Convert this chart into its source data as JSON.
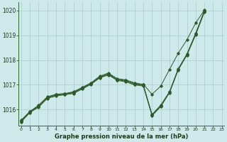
{
  "bg_color": "#cee9e9",
  "grid_color": "#a8cccc",
  "line_color": "#2d5a2d",
  "title": "Graphe pression niveau de la mer (hPa)",
  "ylabel_ticks": [
    1016,
    1017,
    1018,
    1019,
    1020
  ],
  "xlim": [
    -0.3,
    23.3
  ],
  "ylim": [
    1015.35,
    1020.35
  ],
  "series": [
    {
      "x": [
        0,
        1,
        2,
        3,
        4,
        5,
        6,
        7,
        8,
        9,
        10,
        11,
        12,
        13,
        14,
        15,
        16,
        17,
        18,
        19,
        20,
        21
      ],
      "y": [
        1015.55,
        1015.92,
        1016.15,
        1016.5,
        1016.6,
        1016.63,
        1016.7,
        1016.88,
        1017.05,
        1017.32,
        1017.45,
        1017.22,
        1017.18,
        1017.05,
        1017.0,
        1015.8,
        1016.18,
        1016.72,
        1017.65,
        1018.25,
        1019.08,
        1020.0
      ]
    },
    {
      "x": [
        0,
        1,
        2,
        3,
        4,
        5,
        6,
        7,
        8,
        9,
        10,
        11,
        12,
        13,
        14,
        15,
        16,
        17,
        18,
        19,
        20,
        21
      ],
      "y": [
        1015.52,
        1015.9,
        1016.12,
        1016.48,
        1016.58,
        1016.62,
        1016.68,
        1016.86,
        1017.04,
        1017.3,
        1017.42,
        1017.2,
        1017.15,
        1017.02,
        1016.98,
        1015.78,
        1016.15,
        1016.7,
        1017.62,
        1018.22,
        1019.05,
        1019.97
      ]
    },
    {
      "x": [
        0,
        1,
        2,
        3,
        4,
        5,
        6,
        7,
        8,
        9,
        10,
        11,
        12,
        13,
        14,
        15,
        16,
        17,
        18,
        19,
        20,
        21
      ],
      "y": [
        1015.5,
        1015.88,
        1016.1,
        1016.45,
        1016.55,
        1016.6,
        1016.65,
        1016.83,
        1017.02,
        1017.28,
        1017.4,
        1017.18,
        1017.12,
        1017.0,
        1016.95,
        1015.75,
        1016.12,
        1016.68,
        1017.6,
        1018.2,
        1019.02,
        1019.93
      ]
    },
    {
      "x": [
        0,
        1,
        2,
        3,
        4,
        5,
        6,
        7,
        8,
        9,
        10,
        11,
        12,
        13,
        14,
        15,
        16,
        17,
        18,
        19,
        20,
        21
      ],
      "y": [
        1015.58,
        1015.92,
        1016.18,
        1016.52,
        1016.62,
        1016.65,
        1016.72,
        1016.9,
        1017.08,
        1017.35,
        1017.48,
        1017.25,
        1017.2,
        1017.08,
        1017.02,
        1016.62,
        1016.95,
        1017.62,
        1018.28,
        1018.82,
        1019.5,
        1020.02
      ]
    }
  ]
}
